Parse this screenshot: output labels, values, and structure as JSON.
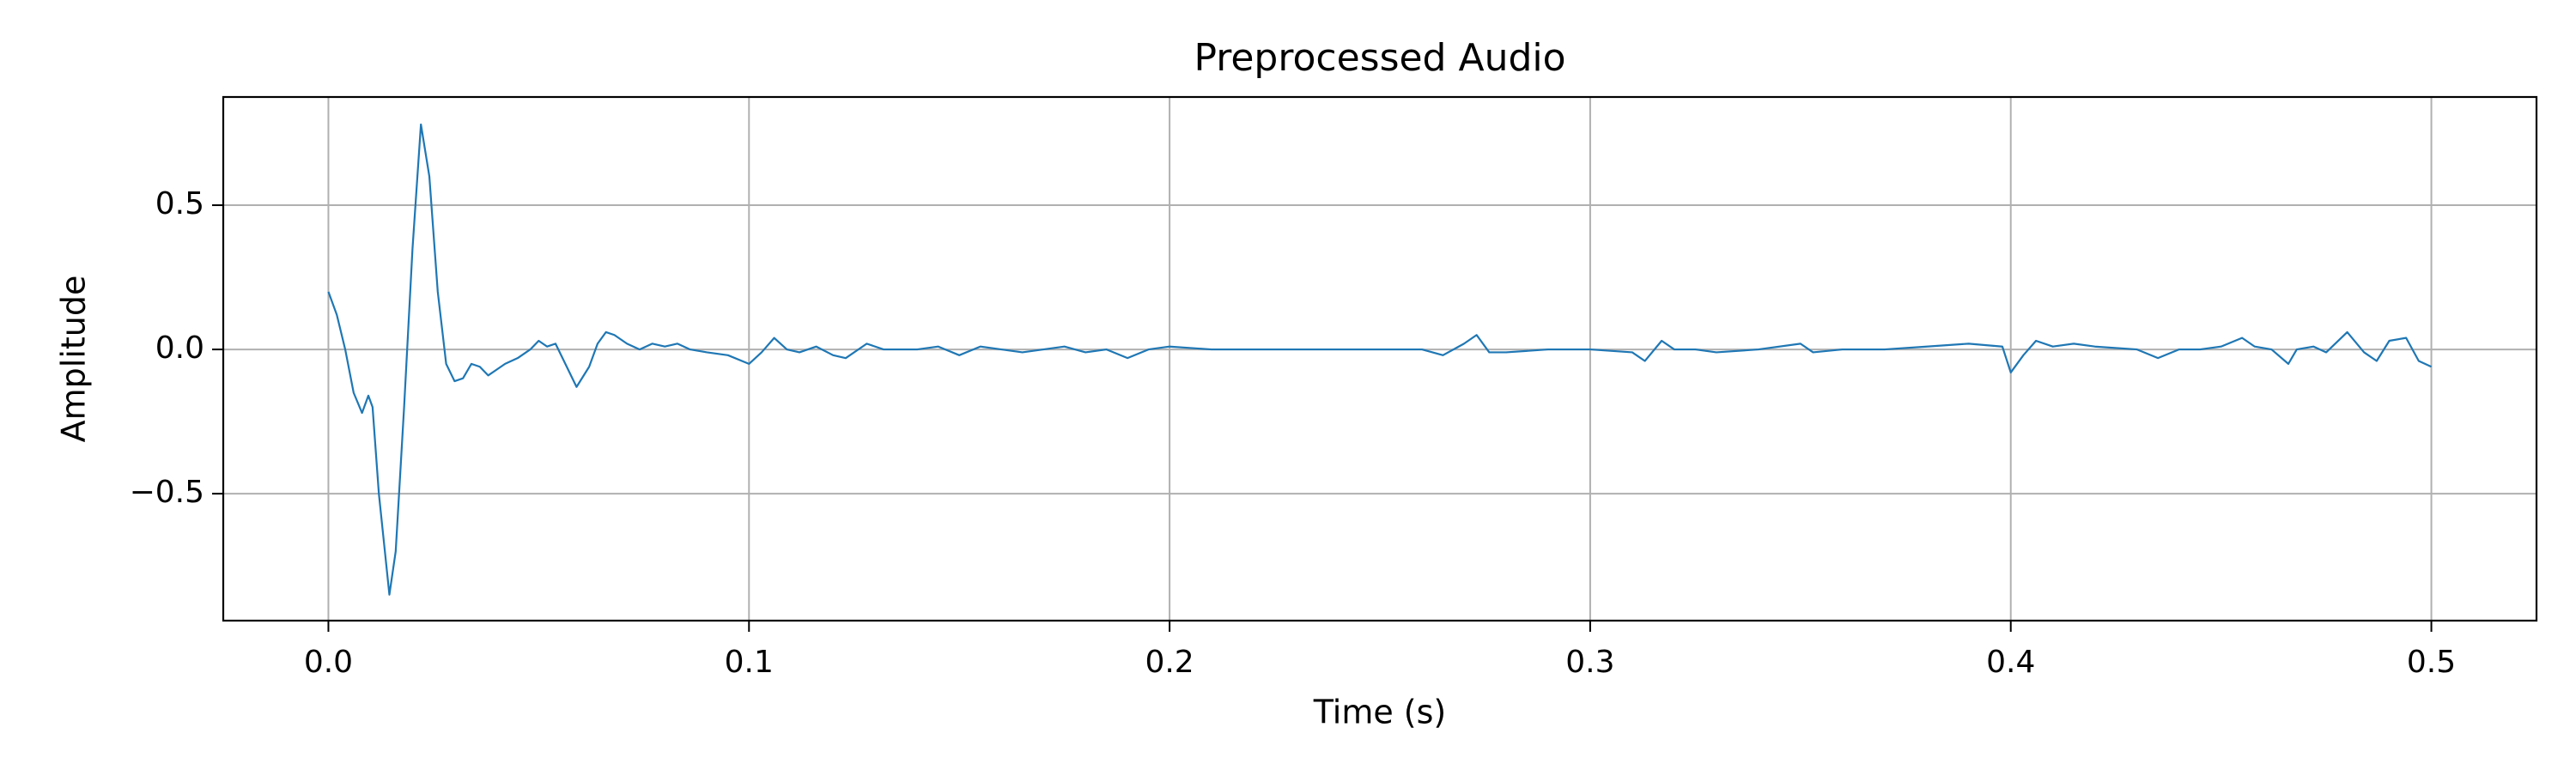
{
  "chart_data": {
    "type": "line",
    "title": "Preprocessed Audio",
    "x_label": "Time (s)",
    "y_label": "Amplitude",
    "color": "#1f77b4",
    "grid": true,
    "xlim": [
      -0.025,
      0.525
    ],
    "ylim": [
      -0.94,
      0.875
    ],
    "xticks": [
      {
        "value": 0,
        "label": "0.0"
      },
      0.1,
      0.2,
      0.3,
      0.4,
      0.5
    ],
    "yticks": [
      {
        "value": -0.5,
        "label": "−0.5"
      },
      {
        "value": 0,
        "label": "0.0"
      },
      0.5
    ],
    "x": [
      0,
      0.002,
      0.004,
      0.006,
      0.008,
      0.0095,
      0.0105,
      0.012,
      0.0145,
      0.016,
      0.018,
      0.02,
      0.022,
      0.024,
      0.026,
      0.028,
      0.03,
      0.032,
      0.034,
      0.036,
      0.038,
      0.04,
      0.042,
      0.045,
      0.048,
      0.05,
      0.052,
      0.054,
      0.056,
      0.059,
      0.062,
      0.064,
      0.066,
      0.068,
      0.071,
      0.074,
      0.077,
      0.08,
      0.083,
      0.086,
      0.09,
      0.095,
      0.1,
      0.103,
      0.106,
      0.109,
      0.112,
      0.116,
      0.12,
      0.123,
      0.128,
      0.132,
      0.14,
      0.145,
      0.15,
      0.155,
      0.16,
      0.165,
      0.17,
      0.175,
      0.18,
      0.185,
      0.19,
      0.195,
      0.2,
      0.21,
      0.22,
      0.24,
      0.26,
      0.265,
      0.27,
      0.273,
      0.276,
      0.28,
      0.29,
      0.3,
      0.31,
      0.313,
      0.317,
      0.32,
      0.325,
      0.33,
      0.34,
      0.35,
      0.353,
      0.36,
      0.37,
      0.38,
      0.39,
      0.398,
      0.4,
      0.403,
      0.406,
      0.41,
      0.415,
      0.42,
      0.43,
      0.435,
      0.44,
      0.445,
      0.45,
      0.455,
      0.458,
      0.462,
      0.466,
      0.468,
      0.472,
      0.475,
      0.48,
      0.484,
      0.487,
      0.49,
      0.494,
      0.497,
      0.5
    ],
    "values": [
      0.2,
      0.12,
      0.0,
      -0.15,
      -0.22,
      -0.16,
      -0.2,
      -0.5,
      -0.85,
      -0.7,
      -0.2,
      0.35,
      0.78,
      0.6,
      0.2,
      -0.05,
      -0.11,
      -0.1,
      -0.05,
      -0.06,
      -0.09,
      -0.07,
      -0.05,
      -0.03,
      0.0,
      0.03,
      0.01,
      0.02,
      -0.04,
      -0.13,
      -0.06,
      0.02,
      0.06,
      0.05,
      0.02,
      0.0,
      0.02,
      0.01,
      0.02,
      0.0,
      -0.01,
      -0.02,
      -0.05,
      -0.01,
      0.04,
      0.0,
      -0.01,
      0.01,
      -0.02,
      -0.03,
      0.02,
      0.0,
      0.0,
      0.01,
      -0.02,
      0.01,
      0.0,
      -0.01,
      0.0,
      0.01,
      -0.01,
      0.0,
      -0.03,
      0.0,
      0.01,
      0.0,
      0.0,
      0.0,
      0.0,
      -0.02,
      0.02,
      0.05,
      -0.01,
      -0.01,
      0.0,
      0.0,
      -0.01,
      -0.04,
      0.03,
      0.0,
      0.0,
      -0.01,
      0.0,
      0.02,
      -0.01,
      0.0,
      0.0,
      0.01,
      0.02,
      0.01,
      -0.08,
      -0.02,
      0.03,
      0.01,
      0.02,
      0.01,
      0.0,
      -0.03,
      0.0,
      0.0,
      0.01,
      0.04,
      0.01,
      0.0,
      -0.05,
      0.0,
      0.01,
      -0.01,
      0.06,
      -0.01,
      -0.04,
      0.03,
      0.04,
      -0.04,
      -0.06
    ]
  }
}
